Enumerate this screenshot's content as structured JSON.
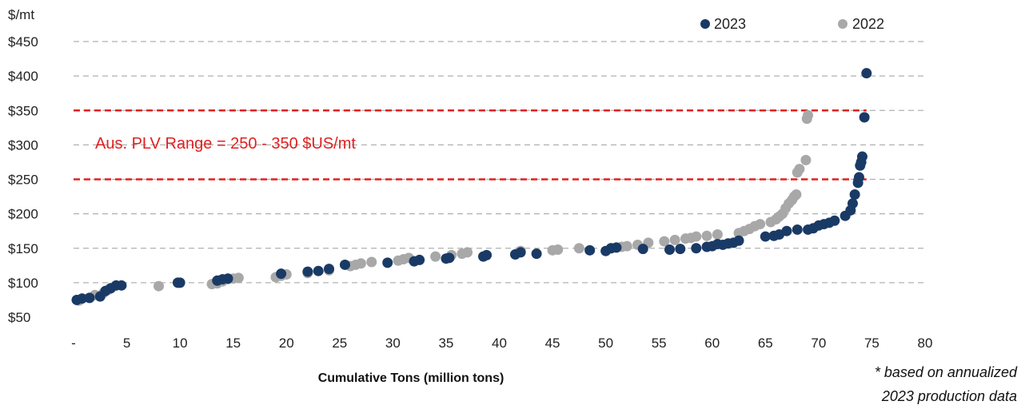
{
  "chart_data": {
    "type": "scatter",
    "title": "",
    "ylabel": "$/mt",
    "xlabel": "Cumulative Tons (million tons)",
    "xlim": [
      0,
      80
    ],
    "ylim": [
      50,
      450
    ],
    "x_tick_labels": [
      "-",
      "5",
      "10",
      "15",
      "20",
      "25",
      "30",
      "35",
      "40",
      "45",
      "50",
      "55",
      "60",
      "65",
      "70",
      "75",
      "80"
    ],
    "y_tick_labels": [
      "$50",
      "$100",
      "$150",
      "$200",
      "$250",
      "$300",
      "$350",
      "$400",
      "$450"
    ],
    "grid": "horizontal dashed",
    "legend_placement": "top-right",
    "reference_lines": [
      {
        "y": 350,
        "color": "#e02020",
        "style": "dashed"
      },
      {
        "y": 250,
        "color": "#e02020",
        "style": "dashed"
      }
    ],
    "annotation": "Aus. PLV Range = 250 - 350 $US/mt",
    "footnote_lines": [
      "* based on annualized",
      "2023 production data"
    ],
    "series": [
      {
        "name": "2023",
        "color": "#1a3a66",
        "points": [
          [
            0.3,
            75
          ],
          [
            0.8,
            77
          ],
          [
            1.5,
            78
          ],
          [
            2.5,
            80
          ],
          [
            3.0,
            88
          ],
          [
            3.5,
            92
          ],
          [
            4.0,
            96
          ],
          [
            4.5,
            96
          ],
          [
            9.8,
            100
          ],
          [
            10.0,
            100
          ],
          [
            13.5,
            103
          ],
          [
            14.0,
            105
          ],
          [
            14.5,
            106
          ],
          [
            19.5,
            113
          ],
          [
            22.0,
            116
          ],
          [
            23.0,
            117
          ],
          [
            24.0,
            120
          ],
          [
            25.5,
            126
          ],
          [
            29.5,
            129
          ],
          [
            32.0,
            131
          ],
          [
            32.5,
            133
          ],
          [
            35.0,
            135
          ],
          [
            35.3,
            136
          ],
          [
            38.5,
            138
          ],
          [
            38.8,
            140
          ],
          [
            41.5,
            141
          ],
          [
            42.0,
            144
          ],
          [
            43.5,
            142
          ],
          [
            48.5,
            147
          ],
          [
            50.0,
            146
          ],
          [
            50.5,
            150
          ],
          [
            51.0,
            151
          ],
          [
            53.5,
            149
          ],
          [
            56.0,
            148
          ],
          [
            57.0,
            149
          ],
          [
            58.5,
            150
          ],
          [
            59.5,
            152
          ],
          [
            60.0,
            153
          ],
          [
            60.5,
            156
          ],
          [
            61.0,
            155
          ],
          [
            61.5,
            157
          ],
          [
            62.0,
            158
          ],
          [
            62.5,
            161
          ],
          [
            65.0,
            167
          ],
          [
            65.8,
            168
          ],
          [
            66.3,
            170
          ],
          [
            67.0,
            175
          ],
          [
            68.0,
            177
          ],
          [
            69.0,
            177
          ],
          [
            69.5,
            179
          ],
          [
            70.0,
            183
          ],
          [
            70.5,
            185
          ],
          [
            71.0,
            187
          ],
          [
            71.5,
            190
          ],
          [
            72.5,
            197
          ],
          [
            73.0,
            205
          ],
          [
            73.2,
            215
          ],
          [
            73.4,
            228
          ],
          [
            73.7,
            245
          ],
          [
            73.8,
            253
          ],
          [
            73.9,
            270
          ],
          [
            74.0,
            275
          ],
          [
            74.1,
            283
          ],
          [
            74.3,
            340
          ],
          [
            74.5,
            404
          ]
        ]
      },
      {
        "name": "2022",
        "color": "#a8a8a8",
        "points": [
          [
            0.5,
            74
          ],
          [
            1.5,
            78
          ],
          [
            2.0,
            82
          ],
          [
            2.8,
            85
          ],
          [
            3.3,
            90
          ],
          [
            8.0,
            95
          ],
          [
            13.0,
            98
          ],
          [
            13.5,
            99
          ],
          [
            14.0,
            102
          ],
          [
            14.5,
            105
          ],
          [
            15.0,
            106
          ],
          [
            15.5,
            107
          ],
          [
            19.0,
            108
          ],
          [
            19.5,
            110
          ],
          [
            20.0,
            112
          ],
          [
            22.0,
            114
          ],
          [
            24.0,
            118
          ],
          [
            26.0,
            124
          ],
          [
            26.5,
            126
          ],
          [
            27.0,
            128
          ],
          [
            28.0,
            130
          ],
          [
            30.5,
            132
          ],
          [
            31.0,
            134
          ],
          [
            31.5,
            136
          ],
          [
            34.0,
            138
          ],
          [
            35.5,
            140
          ],
          [
            36.5,
            142
          ],
          [
            37.0,
            144
          ],
          [
            42.0,
            146
          ],
          [
            45.0,
            147
          ],
          [
            45.5,
            148
          ],
          [
            47.5,
            150
          ],
          [
            50.5,
            150
          ],
          [
            51.5,
            152
          ],
          [
            52.0,
            153
          ],
          [
            53.0,
            155
          ],
          [
            54.0,
            158
          ],
          [
            55.5,
            160
          ],
          [
            56.5,
            162
          ],
          [
            57.5,
            164
          ],
          [
            58.0,
            165
          ],
          [
            58.5,
            167
          ],
          [
            59.5,
            168
          ],
          [
            60.5,
            170
          ],
          [
            62.5,
            172
          ],
          [
            63.0,
            175
          ],
          [
            63.5,
            178
          ],
          [
            64.0,
            182
          ],
          [
            64.5,
            185
          ],
          [
            65.5,
            188
          ],
          [
            66.0,
            192
          ],
          [
            66.3,
            196
          ],
          [
            66.6,
            200
          ],
          [
            66.9,
            208
          ],
          [
            67.2,
            215
          ],
          [
            67.5,
            220
          ],
          [
            67.7,
            225
          ],
          [
            67.9,
            228
          ],
          [
            68.0,
            260
          ],
          [
            68.2,
            265
          ],
          [
            68.8,
            278
          ],
          [
            68.9,
            338
          ],
          [
            69.0,
            343
          ]
        ]
      }
    ]
  }
}
